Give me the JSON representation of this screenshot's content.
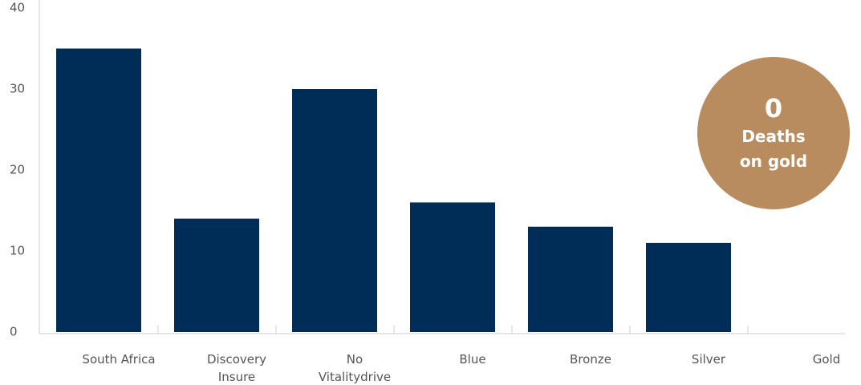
{
  "chart_data": {
    "type": "bar",
    "categories": [
      "South Africa",
      "Discovery Insure",
      "No Vitalitydrive",
      "Blue",
      "Bronze",
      "Silver",
      "Gold"
    ],
    "values": [
      35,
      14,
      30,
      16,
      13,
      11,
      0
    ],
    "color": "#002d58",
    "ylim": [
      0,
      40
    ],
    "yticks": [
      0,
      10,
      20,
      30,
      40
    ],
    "grid": false,
    "annotation": {
      "number": 0,
      "text": "Deaths on gold",
      "color": "#b98c5f"
    }
  }
}
